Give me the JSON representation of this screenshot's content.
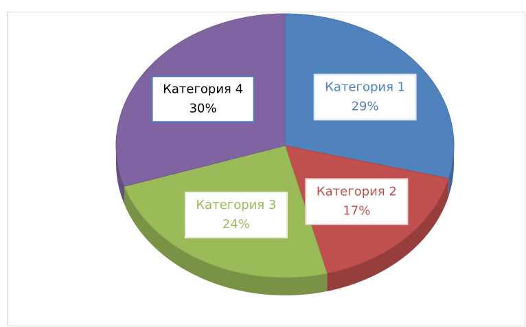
{
  "chart_data": {
    "type": "pie",
    "categories": [
      "Категория 1",
      "Категория 2",
      "Категория 3",
      "Категория 4"
    ],
    "values": [
      29,
      17,
      24,
      30
    ],
    "value_labels": [
      "29%",
      "17%",
      "24%",
      "30%"
    ],
    "colors": [
      "#4f81bd",
      "#c0504d",
      "#9bbb59",
      "#8064a2"
    ],
    "label_colors": [
      "#4f81bd",
      "#c0504d",
      "#9bbb59",
      "#000000"
    ],
    "label_borders": [
      "#dbe5f1",
      "#f2dcdb",
      "#ebf1de",
      "#4f81bd"
    ]
  }
}
